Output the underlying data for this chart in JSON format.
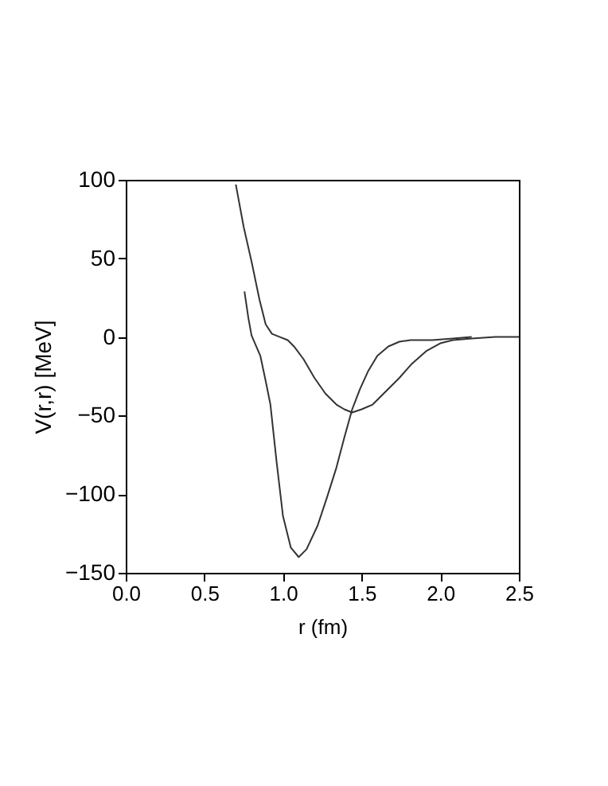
{
  "chart_data": {
    "type": "line",
    "xlabel": "r  (fm)",
    "ylabel": "V(r,r)  [MeV]",
    "xlim": [
      0,
      2.5
    ],
    "xticks": [
      {
        "value": 0,
        "label": "0.0"
      },
      0.5,
      {
        "value": 1,
        "label": "1.0"
      },
      1.5,
      {
        "value": 2,
        "label": "2.0"
      },
      2.5
    ],
    "ylim": [
      -150,
      100
    ],
    "yticks": [
      {
        "value": -150,
        "label": "−150"
      },
      {
        "value": -100,
        "label": "−100"
      },
      {
        "value": -50,
        "label": "−50"
      },
      0,
      50,
      100
    ],
    "grid": false,
    "series": [
      {
        "color": "#333333",
        "x": [
          0.7,
          0.75,
          0.8,
          0.85,
          0.89,
          0.93,
          0.98,
          1.03,
          1.07,
          1.13,
          1.2,
          1.27,
          1.34,
          1.39,
          1.44,
          1.5,
          1.57,
          1.65,
          1.74,
          1.82,
          1.91,
          2.0,
          2.08,
          2.2,
          2.35,
          2.5
        ],
        "values": [
          97,
          70,
          48,
          24,
          8,
          2,
          0,
          -2,
          -6,
          -14,
          -26,
          -36,
          -43,
          -46,
          -48,
          -46,
          -43,
          -35,
          -26,
          -17,
          -9,
          -4,
          -2,
          -1,
          0,
          0
        ]
      },
      {
        "color": "#333333",
        "x": [
          0.755,
          0.78,
          0.8,
          0.83,
          0.856,
          0.89,
          0.92,
          0.96,
          1.0,
          1.05,
          1.1,
          1.15,
          1.22,
          1.28,
          1.34,
          1.39,
          1.44,
          1.49,
          1.54,
          1.6,
          1.67,
          1.74,
          1.81,
          1.95,
          2.08,
          2.2
        ],
        "values": [
          29,
          12,
          1,
          -6,
          -12,
          -28,
          -43,
          -80,
          -114,
          -134,
          -140,
          -135,
          -120,
          -102,
          -83,
          -64,
          -46,
          -33,
          -22,
          -12,
          -6,
          -3,
          -2,
          -2,
          -1,
          0
        ]
      }
    ]
  }
}
